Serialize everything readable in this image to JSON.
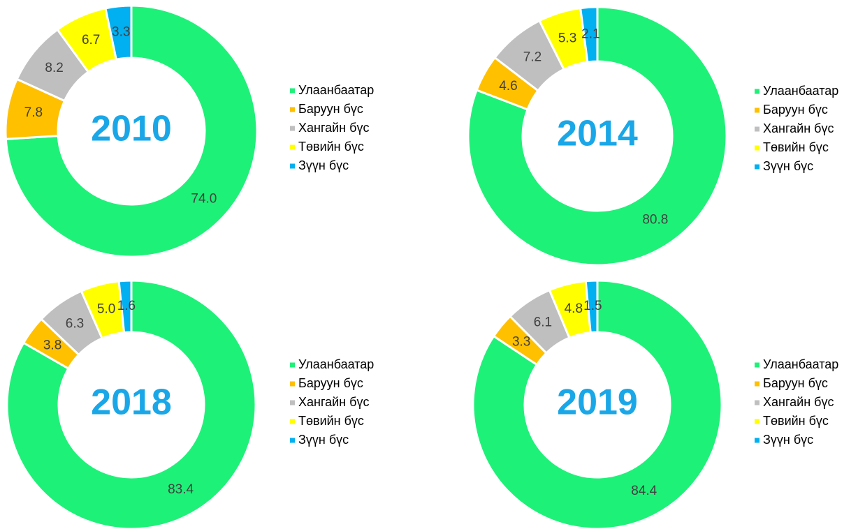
{
  "chart_data": [
    {
      "type": "donut",
      "title": "2010",
      "categories": [
        "Улаанбаатар",
        "Баруун бүс",
        "Хангайн бүс",
        "Төвийн бүс",
        "Зүүн бүс"
      ],
      "values": [
        74.0,
        7.8,
        8.2,
        6.7,
        3.3
      ],
      "value_labels": [
        "74.0",
        "7.8",
        "8.2",
        "6.7",
        "3.3"
      ],
      "colors": [
        "#1ef178",
        "#ffc000",
        "#bfbfbf",
        "#ffff00",
        "#00b0f0"
      ]
    },
    {
      "type": "donut",
      "title": "2014",
      "categories": [
        "Улаанбаатар",
        "Баруун бүс",
        "Хангайн бүс",
        "Төвийн бүс",
        "Зүүн бүс"
      ],
      "values": [
        80.8,
        4.6,
        7.2,
        5.3,
        2.1
      ],
      "value_labels": [
        "80.8",
        "4.6",
        "7.2",
        "5.3",
        "2.1"
      ],
      "colors": [
        "#1ef178",
        "#ffc000",
        "#bfbfbf",
        "#ffff00",
        "#00b0f0"
      ]
    },
    {
      "type": "donut",
      "title": "2018",
      "categories": [
        "Улаанбаатар",
        "Баруун бүс",
        "Хангайн бүс",
        "Төвийн бүс",
        "Зүүн бүс"
      ],
      "values": [
        83.4,
        3.8,
        6.3,
        5.0,
        1.6
      ],
      "value_labels": [
        "83.4",
        "3.8",
        "6.3",
        "5.0",
        "1.6"
      ],
      "colors": [
        "#1ef178",
        "#ffc000",
        "#bfbfbf",
        "#ffff00",
        "#00b0f0"
      ]
    },
    {
      "type": "donut",
      "title": "2019",
      "categories": [
        "Улаанбаатар",
        "Баруун бүс",
        "Хангайн бүс",
        "Төвийн бүс",
        "Зүүн бүс"
      ],
      "values": [
        84.4,
        3.3,
        6.1,
        4.8,
        1.5
      ],
      "value_labels": [
        "84.4",
        "3.3",
        "6.1",
        "4.8",
        "1.5"
      ],
      "colors": [
        "#1ef178",
        "#ffc000",
        "#bfbfbf",
        "#ffff00",
        "#00b0f0"
      ]
    }
  ]
}
